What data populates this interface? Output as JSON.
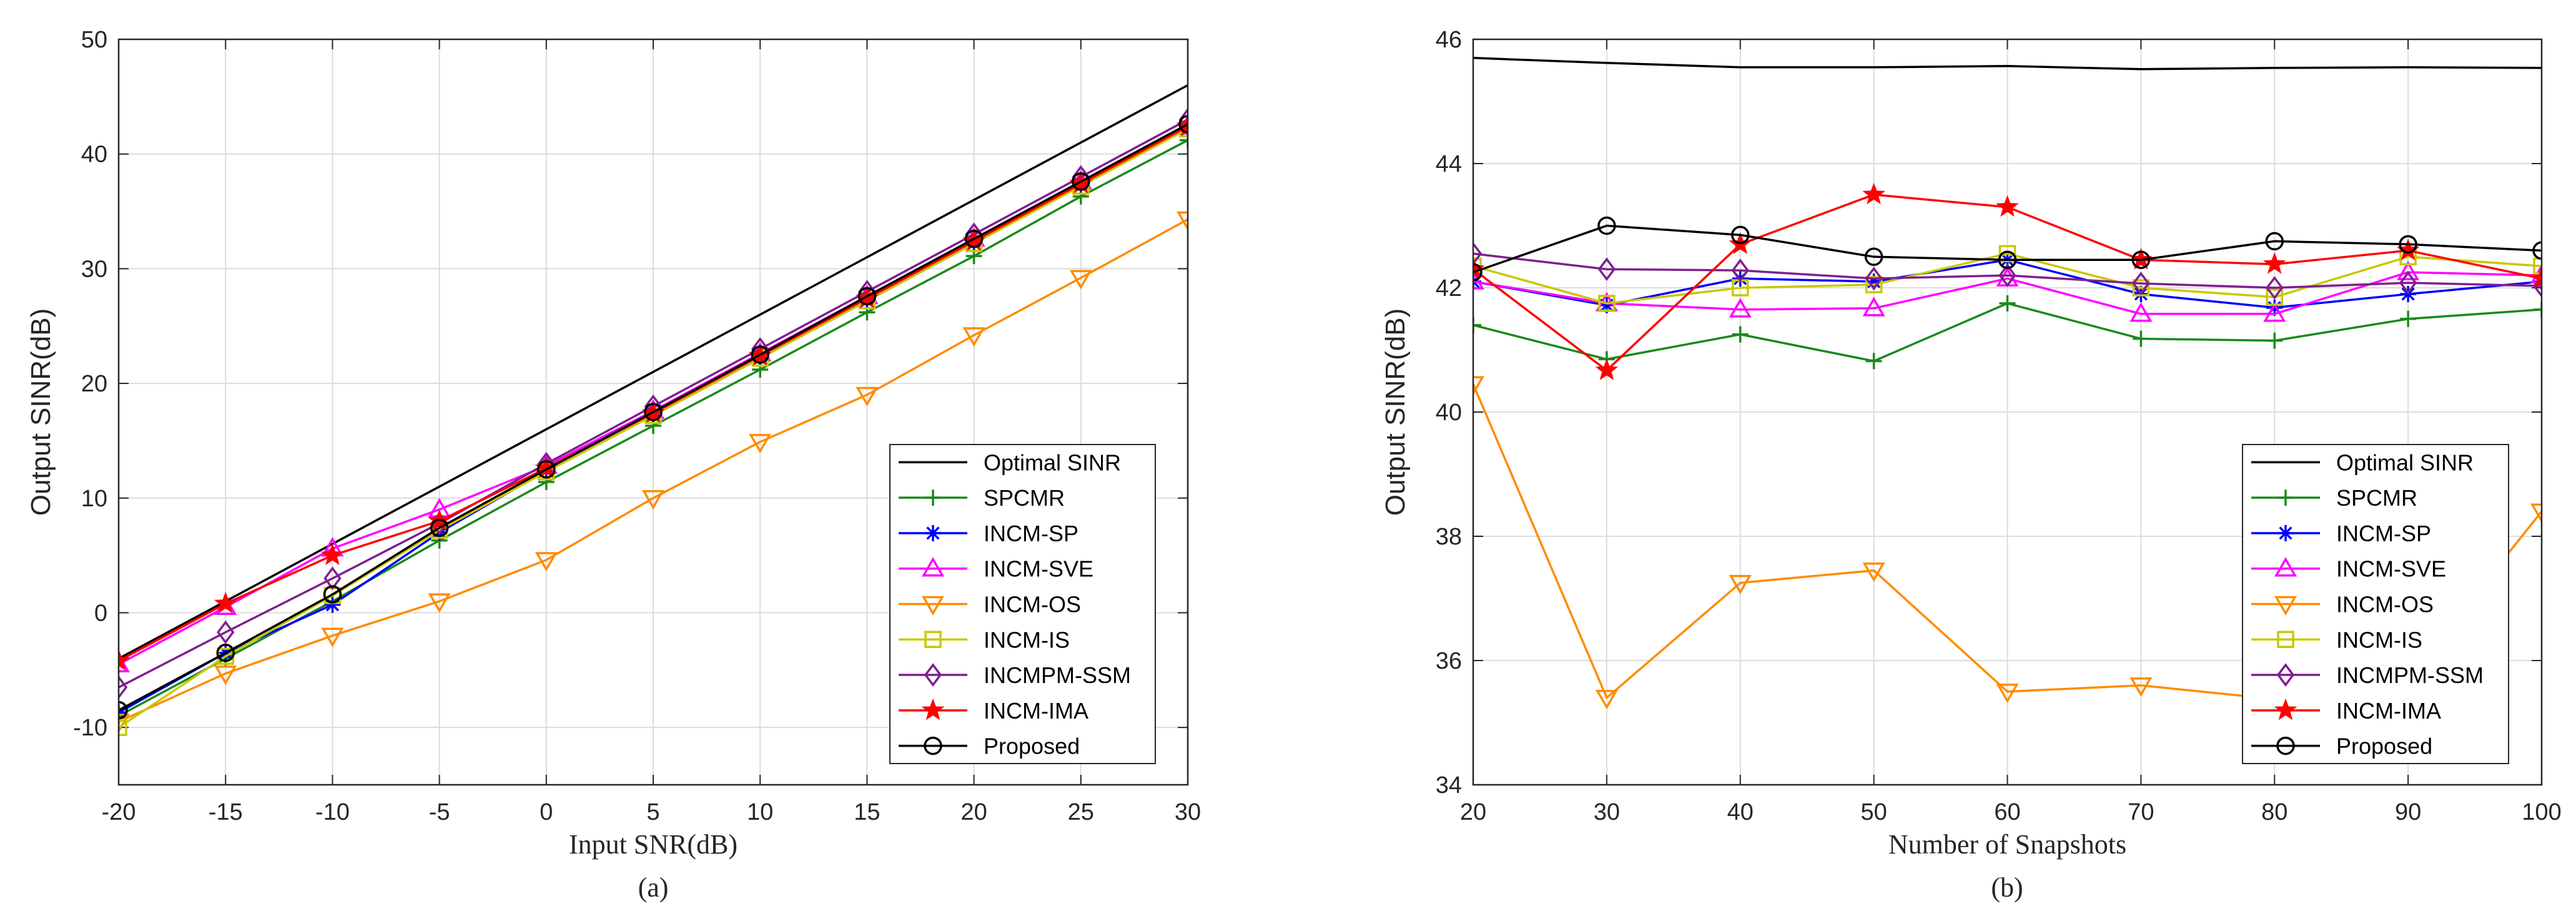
{
  "chart_data": [
    {
      "type": "line",
      "panel_label": "(a)",
      "xlabel": "Input SNR(dB)",
      "ylabel": "Output SINR(dB)",
      "xlim": [
        -20,
        30
      ],
      "ylim": [
        -15,
        50
      ],
      "xticks": [
        -20,
        -15,
        -10,
        -5,
        0,
        5,
        10,
        15,
        20,
        25,
        30
      ],
      "yticks": [
        -10,
        0,
        10,
        20,
        30,
        40,
        50
      ],
      "grid": true,
      "legend_position": "bottom-right",
      "x": [
        -20,
        -15,
        -10,
        -5,
        0,
        5,
        10,
        15,
        20,
        25,
        30
      ],
      "series": [
        {
          "name": "Optimal SINR",
          "color": "#000000",
          "marker": "none",
          "values": [
            -4,
            1,
            6,
            11,
            16,
            21,
            26,
            31,
            36,
            41,
            46
          ]
        },
        {
          "name": "SPCMR",
          "color": "#1a8a1a",
          "marker": "plus",
          "values": [
            -9,
            -4,
            1,
            6.3,
            11.4,
            16.3,
            21.2,
            26.2,
            31.1,
            36.3,
            41.2
          ]
        },
        {
          "name": "INCM-SP",
          "color": "#0000ff",
          "marker": "asterisk",
          "values": [
            -8.7,
            -3.5,
            0.7,
            7,
            12.4,
            17.2,
            22.2,
            27.2,
            32.2,
            37.3,
            42.2
          ]
        },
        {
          "name": "INCM-SVE",
          "color": "#ff00ff",
          "marker": "triangle-up",
          "values": [
            -4.5,
            0.5,
            5.6,
            9,
            12.8,
            17.6,
            22.6,
            27.6,
            32.6,
            37.6,
            42.4
          ]
        },
        {
          "name": "INCM-OS",
          "color": "#ff8c00",
          "marker": "triangle-down",
          "values": [
            -9.5,
            -5.3,
            -2,
            1,
            4.6,
            10,
            14.9,
            19,
            24.2,
            29.2,
            34.3
          ]
        },
        {
          "name": "INCM-IS",
          "color": "#c8c800",
          "marker": "square",
          "values": [
            -10,
            -3.8,
            1.5,
            7.2,
            12.3,
            17.2,
            22.2,
            27.2,
            32.2,
            37.2,
            42.2
          ]
        },
        {
          "name": "INCMPM-SSM",
          "color": "#7f1f8f",
          "marker": "diamond",
          "values": [
            -6.5,
            -1.7,
            3,
            7.8,
            13,
            18,
            23,
            28,
            33,
            38,
            43
          ]
        },
        {
          "name": "INCM-IMA",
          "color": "#ff0000",
          "marker": "star",
          "values": [
            -4.2,
            0.8,
            5,
            8,
            12.6,
            17.4,
            22.4,
            27.4,
            32.4,
            37.4,
            42.4
          ]
        },
        {
          "name": "Proposed",
          "color": "#000000",
          "marker": "circle",
          "values": [
            -8.5,
            -3.5,
            1.6,
            7.4,
            12.5,
            17.5,
            22.5,
            27.6,
            32.6,
            37.6,
            42.6
          ]
        }
      ]
    },
    {
      "type": "line",
      "panel_label": "(b)",
      "xlabel": "Number of Snapshots",
      "ylabel": "Output SINR(dB)",
      "xlim": [
        20,
        100
      ],
      "ylim": [
        34,
        46
      ],
      "xticks": [
        20,
        30,
        40,
        50,
        60,
        70,
        80,
        90,
        100
      ],
      "yticks": [
        34,
        36,
        38,
        40,
        42,
        44,
        46
      ],
      "grid": true,
      "legend_position": "bottom-right",
      "x": [
        20,
        30,
        40,
        50,
        60,
        70,
        80,
        90,
        100
      ],
      "series": [
        {
          "name": "Optimal SINR",
          "color": "#000000",
          "marker": "none",
          "values": [
            45.7,
            45.62,
            45.55,
            45.55,
            45.57,
            45.52,
            45.54,
            45.55,
            45.54
          ]
        },
        {
          "name": "SPCMR",
          "color": "#1a8a1a",
          "marker": "plus",
          "values": [
            41.4,
            40.85,
            41.25,
            40.82,
            41.75,
            41.18,
            41.15,
            41.5,
            41.65
          ]
        },
        {
          "name": "INCM-SP",
          "color": "#0000ff",
          "marker": "asterisk",
          "values": [
            42.1,
            41.72,
            42.15,
            42.1,
            42.45,
            41.9,
            41.68,
            41.9,
            42.1
          ]
        },
        {
          "name": "INCM-SVE",
          "color": "#ff00ff",
          "marker": "triangle-up",
          "values": [
            42.1,
            41.75,
            41.65,
            41.67,
            42.15,
            41.58,
            41.58,
            42.25,
            42.2
          ]
        },
        {
          "name": "INCM-OS",
          "color": "#ff8c00",
          "marker": "triangle-down",
          "values": [
            40.45,
            35.4,
            37.25,
            37.45,
            35.5,
            35.6,
            35.38,
            35.7,
            38.4
          ]
        },
        {
          "name": "INCM-IS",
          "color": "#c8c800",
          "marker": "square",
          "values": [
            42.35,
            41.75,
            42.0,
            42.05,
            42.55,
            42.0,
            41.85,
            42.5,
            42.35
          ]
        },
        {
          "name": "INCMPM-SSM",
          "color": "#7f1f8f",
          "marker": "diamond",
          "values": [
            42.55,
            42.3,
            42.28,
            42.15,
            42.2,
            42.07,
            42.0,
            42.08,
            42.03
          ]
        },
        {
          "name": "INCM-IMA",
          "color": "#ff0000",
          "marker": "star",
          "values": [
            42.3,
            40.67,
            42.7,
            43.5,
            43.3,
            42.45,
            42.38,
            42.6,
            42.15
          ]
        },
        {
          "name": "Proposed",
          "color": "#000000",
          "marker": "circle",
          "values": [
            42.25,
            43.0,
            42.85,
            42.5,
            42.45,
            42.45,
            42.75,
            42.7,
            42.6
          ]
        }
      ]
    }
  ]
}
